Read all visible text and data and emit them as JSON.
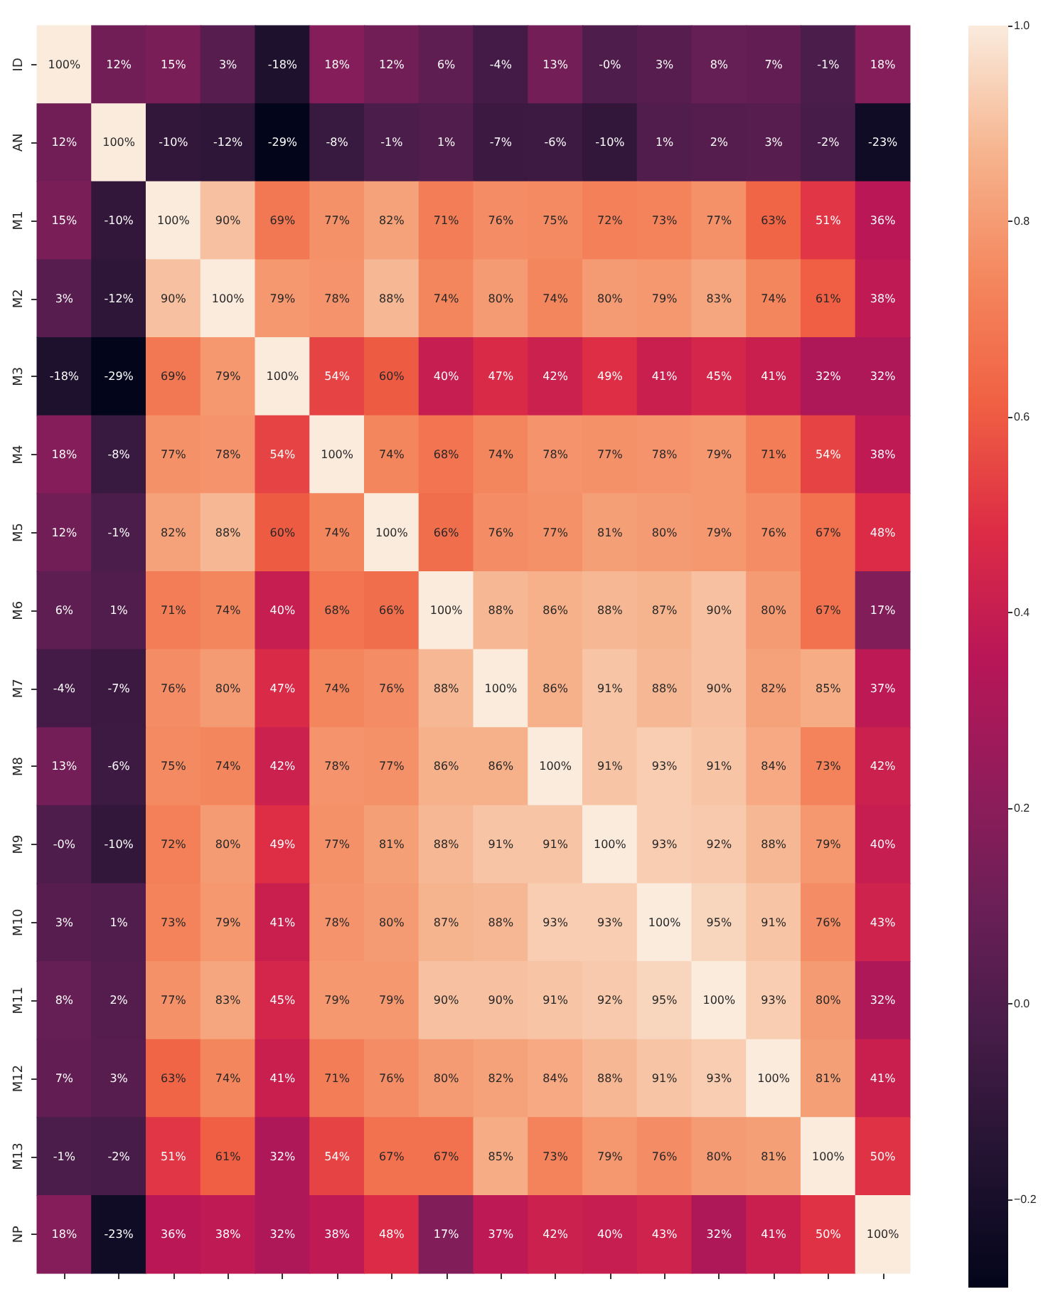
{
  "chart_data": {
    "type": "heatmap",
    "categories": [
      null,
      null,
      null,
      null,
      null,
      null,
      null,
      null,
      null,
      null,
      null,
      null,
      null,
      null,
      null,
      null
    ],
    "y_categories": [
      "ID",
      "AN",
      "M1",
      "M2",
      "M3",
      "M4",
      "M5",
      "M6",
      "M7",
      "M8",
      "M9",
      "M10",
      "M11",
      "M12",
      "M13",
      "NP"
    ],
    "tick_labels": "y",
    "clim": [
      -0.29,
      1.0
    ],
    "cticks": [
      {
        "value": -0.2,
        "label": "−0.2"
      },
      {
        "value": 0,
        "label": "0.0"
      },
      {
        "value": 0.2,
        "label": "0.2"
      },
      {
        "value": 0.4,
        "label": "0.4"
      },
      {
        "value": 0.6,
        "label": "0.6"
      },
      {
        "value": 0.8,
        "label": "0.8"
      },
      {
        "value": 1,
        "label": "1.0"
      }
    ],
    "cells": [
      [
        1.0,
        0.12,
        0.15,
        0.03,
        -0.18,
        0.18,
        0.12,
        0.06,
        -0.04,
        0.13,
        0,
        0.03,
        0.08,
        0.07,
        -0.01,
        0.18
      ],
      [
        0.12,
        1.0,
        -0.1,
        -0.12,
        -0.29,
        -0.08,
        -0.01,
        0.01,
        -0.07,
        -0.06,
        -0.1,
        0.01,
        0.02,
        0.03,
        -0.02,
        -0.23
      ],
      [
        0.15,
        -0.1,
        1.0,
        0.9,
        0.69,
        0.77,
        0.82,
        0.71,
        0.76,
        0.75,
        0.72,
        0.73,
        0.77,
        0.63,
        0.51,
        0.36
      ],
      [
        0.03,
        -0.12,
        0.9,
        1.0,
        0.79,
        0.78,
        0.88,
        0.74,
        0.8,
        0.74,
        0.8,
        0.79,
        0.83,
        0.74,
        0.61,
        0.38
      ],
      [
        -0.18,
        -0.29,
        0.69,
        0.79,
        1.0,
        0.54,
        0.6,
        0.4,
        0.47,
        0.42,
        0.49,
        0.41,
        0.45,
        0.41,
        0.32,
        0.32
      ],
      [
        0.18,
        -0.08,
        0.77,
        0.78,
        0.54,
        1.0,
        0.74,
        0.68,
        0.74,
        0.78,
        0.77,
        0.78,
        0.79,
        0.71,
        0.54,
        0.38
      ],
      [
        0.12,
        -0.01,
        0.82,
        0.88,
        0.6,
        0.74,
        1.0,
        0.66,
        0.76,
        0.77,
        0.81,
        0.8,
        0.79,
        0.76,
        0.67,
        0.48
      ],
      [
        0.06,
        0.01,
        0.71,
        0.74,
        0.4,
        0.68,
        0.66,
        1.0,
        0.88,
        0.86,
        0.88,
        0.87,
        0.9,
        0.8,
        0.67,
        0.17
      ],
      [
        -0.04,
        -0.07,
        0.76,
        0.8,
        0.47,
        0.74,
        0.76,
        0.88,
        1.0,
        0.86,
        0.91,
        0.88,
        0.9,
        0.82,
        0.85,
        0.37
      ],
      [
        0.13,
        -0.06,
        0.75,
        0.74,
        0.42,
        0.78,
        0.77,
        0.86,
        0.86,
        1.0,
        0.91,
        0.93,
        0.91,
        0.84,
        0.73,
        0.42
      ],
      [
        0,
        -0.1,
        0.72,
        0.8,
        0.49,
        0.77,
        0.81,
        0.88,
        0.91,
        0.91,
        1.0,
        0.93,
        0.92,
        0.88,
        0.79,
        0.4
      ],
      [
        0.03,
        0.01,
        0.73,
        0.79,
        0.41,
        0.78,
        0.8,
        0.87,
        0.88,
        0.93,
        0.93,
        1.0,
        0.95,
        0.91,
        0.76,
        0.43
      ],
      [
        0.08,
        0.02,
        0.77,
        0.83,
        0.45,
        0.79,
        0.79,
        0.9,
        0.9,
        0.91,
        0.92,
        0.95,
        1.0,
        0.93,
        0.8,
        0.32
      ],
      [
        0.07,
        0.03,
        0.63,
        0.74,
        0.41,
        0.71,
        0.76,
        0.8,
        0.82,
        0.84,
        0.88,
        0.91,
        0.93,
        1.0,
        0.81,
        0.41
      ],
      [
        -0.01,
        -0.02,
        0.51,
        0.61,
        0.32,
        0.54,
        0.67,
        0.67,
        0.85,
        0.73,
        0.79,
        0.76,
        0.8,
        0.81,
        1.0,
        0.5
      ],
      [
        0.18,
        -0.23,
        0.36,
        0.38,
        0.32,
        0.38,
        0.48,
        0.17,
        0.37,
        0.42,
        0.4,
        0.43,
        0.32,
        0.41,
        0.5,
        1.0
      ]
    ],
    "cell_labels": [
      [
        "100%",
        "12%",
        "15%",
        "3%",
        "-18%",
        "18%",
        "12%",
        "6%",
        "-4%",
        "13%",
        "-0%",
        "3%",
        "8%",
        "7%",
        "-1%",
        "18%"
      ],
      [
        "12%",
        "100%",
        "-10%",
        "-12%",
        "-29%",
        "-8%",
        "-1%",
        "1%",
        "-7%",
        "-6%",
        "-10%",
        "1%",
        "2%",
        "3%",
        "-2%",
        "-23%"
      ],
      [
        "15%",
        "-10%",
        "100%",
        "90%",
        "69%",
        "77%",
        "82%",
        "71%",
        "76%",
        "75%",
        "72%",
        "73%",
        "77%",
        "63%",
        "51%",
        "36%"
      ],
      [
        "3%",
        "-12%",
        "90%",
        "100%",
        "79%",
        "78%",
        "88%",
        "74%",
        "80%",
        "74%",
        "80%",
        "79%",
        "83%",
        "74%",
        "61%",
        "38%"
      ],
      [
        "-18%",
        "-29%",
        "69%",
        "79%",
        "100%",
        "54%",
        "60%",
        "40%",
        "47%",
        "42%",
        "49%",
        "41%",
        "45%",
        "41%",
        "32%",
        "32%"
      ],
      [
        "18%",
        "-8%",
        "77%",
        "78%",
        "54%",
        "100%",
        "74%",
        "68%",
        "74%",
        "78%",
        "77%",
        "78%",
        "79%",
        "71%",
        "54%",
        "38%"
      ],
      [
        "12%",
        "-1%",
        "82%",
        "88%",
        "60%",
        "74%",
        "100%",
        "66%",
        "76%",
        "77%",
        "81%",
        "80%",
        "79%",
        "76%",
        "67%",
        "48%"
      ],
      [
        "6%",
        "1%",
        "71%",
        "74%",
        "40%",
        "68%",
        "66%",
        "100%",
        "88%",
        "86%",
        "88%",
        "87%",
        "90%",
        "80%",
        "67%",
        "17%"
      ],
      [
        "-4%",
        "-7%",
        "76%",
        "80%",
        "47%",
        "74%",
        "76%",
        "88%",
        "100%",
        "86%",
        "91%",
        "88%",
        "90%",
        "82%",
        "85%",
        "37%"
      ],
      [
        "13%",
        "-6%",
        "75%",
        "74%",
        "42%",
        "78%",
        "77%",
        "86%",
        "86%",
        "100%",
        "91%",
        "93%",
        "91%",
        "84%",
        "73%",
        "42%"
      ],
      [
        "-0%",
        "-10%",
        "72%",
        "80%",
        "49%",
        "77%",
        "81%",
        "88%",
        "91%",
        "91%",
        "100%",
        "93%",
        "92%",
        "88%",
        "79%",
        "40%"
      ],
      [
        "3%",
        "1%",
        "73%",
        "79%",
        "41%",
        "78%",
        "80%",
        "87%",
        "88%",
        "93%",
        "93%",
        "100%",
        "95%",
        "91%",
        "76%",
        "43%"
      ],
      [
        "8%",
        "2%",
        "77%",
        "83%",
        "45%",
        "79%",
        "79%",
        "90%",
        "90%",
        "91%",
        "92%",
        "95%",
        "100%",
        "93%",
        "80%",
        "32%"
      ],
      [
        "7%",
        "3%",
        "63%",
        "74%",
        "41%",
        "71%",
        "76%",
        "80%",
        "82%",
        "84%",
        "88%",
        "91%",
        "93%",
        "100%",
        "81%",
        "41%"
      ],
      [
        "-1%",
        "-2%",
        "51%",
        "61%",
        "32%",
        "54%",
        "67%",
        "67%",
        "85%",
        "73%",
        "79%",
        "76%",
        "80%",
        "81%",
        "100%",
        "50%"
      ],
      [
        "18%",
        "-23%",
        "36%",
        "38%",
        "32%",
        "38%",
        "48%",
        "17%",
        "37%",
        "42%",
        "40%",
        "43%",
        "32%",
        "41%",
        "50%",
        "100%"
      ]
    ]
  }
}
